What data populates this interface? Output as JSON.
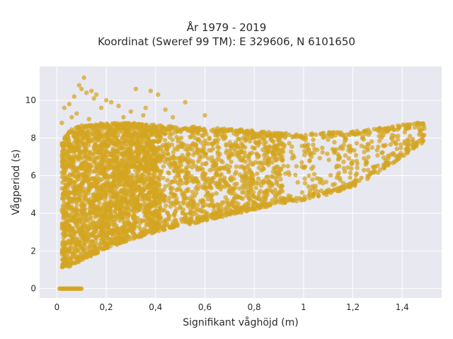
{
  "title_line1": "År 1979 - 2019",
  "title_line2": "Koordinat (Sweref 99 TM): E 329606, N 6101650",
  "chart_data": {
    "type": "scatter",
    "title": "År 1979 - 2019 / Koordinat (Sweref 99 TM): E 329606, N 6101650",
    "xlabel": "Signifikant våghöjd (m)",
    "ylabel": "Vågperiod (s)",
    "xlim": [
      -0.07,
      1.56
    ],
    "ylim": [
      -0.5,
      11.8
    ],
    "x_ticks": [
      0,
      0.2,
      0.4,
      0.6,
      0.8,
      1,
      1.2,
      1.4
    ],
    "x_tick_labels": [
      "0",
      "0,2",
      "0,4",
      "0,6",
      "0,8",
      "1",
      "1,2",
      "1,4"
    ],
    "y_ticks": [
      0,
      2,
      4,
      6,
      8,
      10
    ],
    "y_tick_labels": [
      "0",
      "2",
      "4",
      "6",
      "8",
      "10"
    ],
    "grid": true,
    "legend": "none",
    "colors": {
      "marker": "#d4a520",
      "plot_bg": "#e8e8f0",
      "grid": "#ffffff"
    },
    "series": [
      {
        "envelope": {
          "h": [
            0.0,
            0.05,
            0.1,
            0.2,
            0.3,
            0.4,
            0.5,
            0.6,
            0.7,
            0.8,
            0.9,
            1.0,
            1.1,
            1.2,
            1.3,
            1.4,
            1.5
          ],
          "upper": [
            7.4,
            8.4,
            8.7,
            8.8,
            8.8,
            8.7,
            8.6,
            8.6,
            8.5,
            8.4,
            8.3,
            8.2,
            8.3,
            8.4,
            8.5,
            8.7,
            8.9
          ],
          "lower": [
            1.1,
            1.1,
            1.5,
            2.1,
            2.6,
            3.0,
            3.3,
            3.6,
            3.9,
            4.2,
            4.5,
            4.7,
            5.0,
            5.4,
            6.1,
            7.0,
            7.9
          ]
        },
        "zero_cluster": {
          "x_range": [
            0.01,
            0.1
          ],
          "y": 0
        },
        "outliers": [
          [
            0.11,
            11.2
          ],
          [
            0.09,
            10.8
          ],
          [
            0.1,
            10.6
          ],
          [
            0.12,
            10.4
          ],
          [
            0.07,
            10.2
          ],
          [
            0.14,
            10.5
          ],
          [
            0.15,
            10.1
          ],
          [
            0.2,
            10.0
          ],
          [
            0.32,
            10.6
          ],
          [
            0.38,
            10.5
          ],
          [
            0.52,
            9.9
          ],
          [
            0.41,
            10.3
          ],
          [
            0.05,
            9.8
          ],
          [
            0.18,
            9.6
          ],
          [
            0.25,
            9.7
          ],
          [
            0.08,
            9.3
          ],
          [
            0.3,
            9.4
          ],
          [
            0.35,
            9.2
          ],
          [
            0.44,
            9.5
          ],
          [
            0.22,
            9.9
          ],
          [
            0.03,
            9.6
          ],
          [
            0.27,
            9.1
          ],
          [
            0.13,
            9.0
          ],
          [
            0.06,
            9.1
          ],
          [
            0.47,
            9.1
          ],
          [
            0.16,
            10.3
          ],
          [
            0.02,
            8.8
          ],
          [
            0.36,
            9.6
          ],
          [
            0.6,
            9.2
          ]
        ]
      }
    ]
  }
}
